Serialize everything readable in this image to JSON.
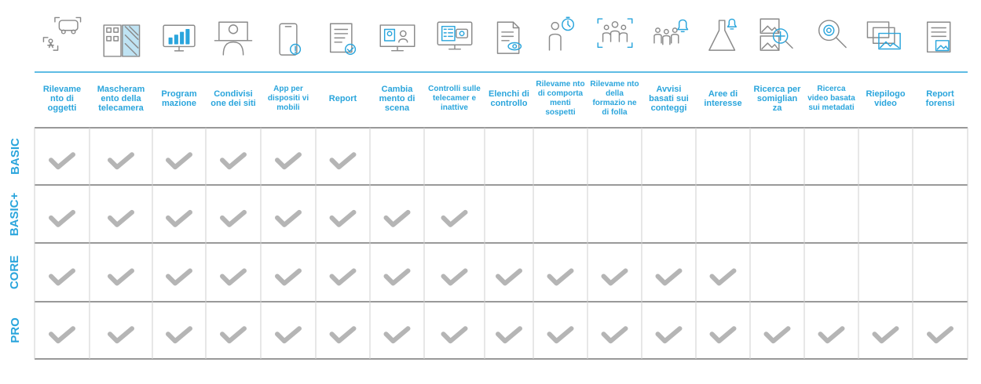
{
  "features": [
    {
      "label": "Rilevame nto di oggetti",
      "icon": "object-detection-icon"
    },
    {
      "label": "Mascheram ento della telecamera",
      "icon": "camera-masking-icon"
    },
    {
      "label": "Program mazione",
      "icon": "scheduling-icon"
    },
    {
      "label": "Condivisi one dei siti",
      "icon": "site-sharing-icon"
    },
    {
      "label": "App per dispositi vi mobili",
      "icon": "mobile-app-icon"
    },
    {
      "label": "Report",
      "icon": "report-icon"
    },
    {
      "label": "Cambia mento di scena",
      "icon": "scene-change-icon"
    },
    {
      "label": "Controlli sulle telecamer e inattive",
      "icon": "inactive-camera-icon"
    },
    {
      "label": "Elenchi di controllo",
      "icon": "watchlist-icon"
    },
    {
      "label": "Rilevame nto di comporta menti sospetti",
      "icon": "suspicious-behavior-icon"
    },
    {
      "label": "Rilevame nto della formazio ne di folla",
      "icon": "crowd-detection-icon"
    },
    {
      "label": "Avvisi basati sui conteggi",
      "icon": "count-alert-icon"
    },
    {
      "label": "Aree di interesse",
      "icon": "area-of-interest-icon"
    },
    {
      "label": "Ricerca per somiglian za",
      "icon": "similarity-search-icon"
    },
    {
      "label": "Ricerca video basata sui metadati",
      "icon": "metadata-search-icon"
    },
    {
      "label": "Riepilogo video",
      "icon": "video-summary-icon"
    },
    {
      "label": "Report forensi",
      "icon": "forensic-report-icon"
    }
  ],
  "tiers": [
    {
      "name": "BASIC",
      "included": 6
    },
    {
      "name": "BASIC+",
      "included": 8
    },
    {
      "name": "CORE",
      "included": 13
    },
    {
      "name": "PRO",
      "included": 17
    }
  ],
  "colors": {
    "accent": "#2aa5dc",
    "check": "#b5b5b5",
    "rule": "#333333",
    "grid": "#cfcfcf"
  }
}
